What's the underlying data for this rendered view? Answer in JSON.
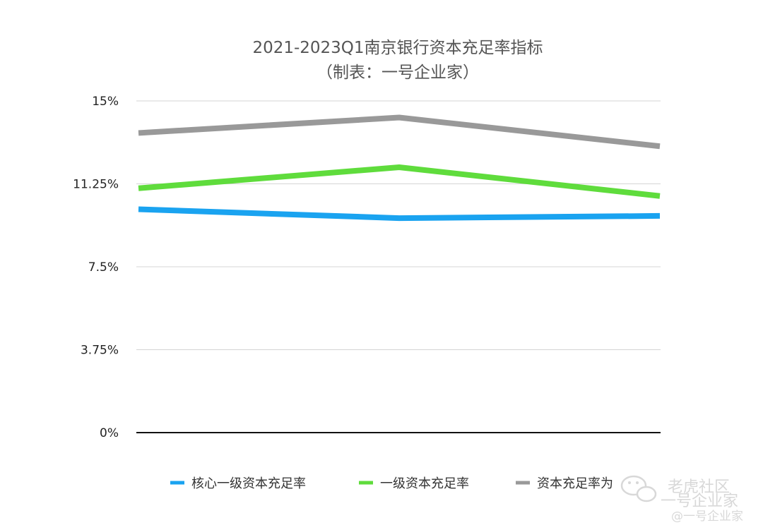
{
  "chart_data": {
    "type": "line",
    "title": "2021-2023Q1南京银行资本充足率指标",
    "subtitle": "（制表：一号企业家）",
    "xlabel": "",
    "ylabel": "",
    "ylim": [
      0,
      15
    ],
    "yticks": [
      "15%",
      "11.25%",
      "7.5%",
      "3.75%",
      "0%"
    ],
    "ytick_values": [
      15,
      11.25,
      7.5,
      3.75,
      0
    ],
    "x": [
      0,
      1,
      2
    ],
    "grid": true,
    "legend_position": "bottom",
    "series": [
      {
        "name": "核心一级资本充足率",
        "color": "#1aa3f0",
        "values": [
          10.1,
          9.7,
          9.8
        ]
      },
      {
        "name": "一级资本充足率",
        "color": "#5fdc3c",
        "values": [
          11.05,
          12.0,
          10.7
        ]
      },
      {
        "name": "资本充足率为",
        "color": "#999999",
        "values": [
          13.55,
          14.25,
          12.95
        ]
      }
    ]
  },
  "watermark": {
    "line1": "老虎社区",
    "line2": "一号企业家",
    "line3": "@一号企业家"
  }
}
